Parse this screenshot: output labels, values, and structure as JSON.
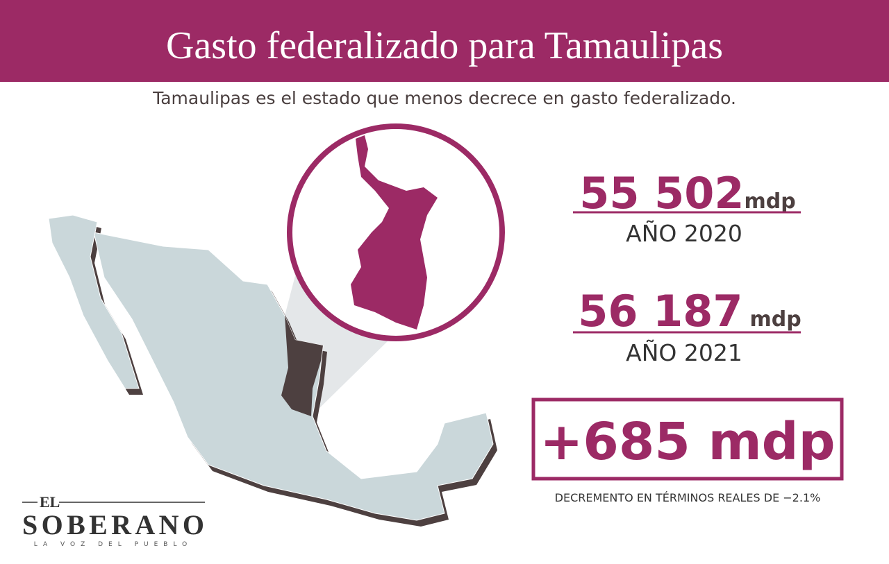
{
  "header": {
    "title": "Gasto federalizado para Tamaulipas"
  },
  "subtitle": "Tamaulipas es el estado que menos decrece en gasto federalizado.",
  "stats": [
    {
      "amount": "55 502",
      "unit": "mdp",
      "label": "AÑO 2020"
    },
    {
      "amount": "56 187",
      "unit": "mdp",
      "label": "AÑO 2021"
    }
  ],
  "difference": "+685 mdp",
  "note": "DECREMENTO EN TÉRMINOS REALES DE −2.1%",
  "logo": {
    "prefix": "EL",
    "name": "SOBERANO",
    "tagline": "LA VOZ DEL PUEBLO"
  }
}
